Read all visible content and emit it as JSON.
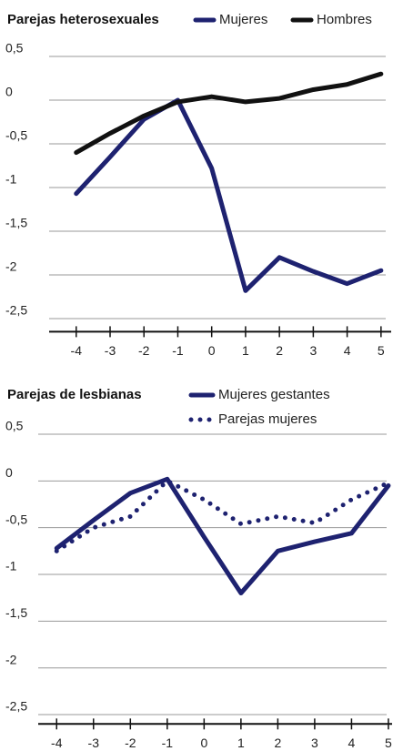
{
  "chart_data": [
    {
      "type": "line",
      "title": "Parejas heterosexuales",
      "x": [
        -4,
        -3,
        -2,
        -1,
        0,
        1,
        2,
        3,
        4,
        5
      ],
      "series": [
        {
          "name": "Mujeres",
          "color": "#1e2270",
          "style": "solid",
          "values": [
            -1.07,
            -0.65,
            -0.22,
            0.0,
            -0.78,
            -2.18,
            -1.8,
            -1.96,
            -2.1,
            -1.95
          ]
        },
        {
          "name": "Hombres",
          "color": "#111111",
          "style": "solid",
          "values": [
            -0.6,
            -0.38,
            -0.18,
            -0.02,
            0.04,
            -0.02,
            0.02,
            0.12,
            0.18,
            0.3
          ]
        }
      ],
      "xlim": [
        -4.8,
        5.3
      ],
      "xticks": [
        -4,
        -3,
        -2,
        -1,
        0,
        1,
        2,
        3,
        4,
        5
      ],
      "ylim": [
        -2.65,
        0.65
      ],
      "yticks": [
        {
          "value": 0.5,
          "label": "0,5"
        },
        0,
        {
          "value": -0.5,
          "label": "-0,5"
        },
        -1,
        {
          "value": -1.5,
          "label": "-1,5"
        },
        -2,
        {
          "value": -2.5,
          "label": "-2,5"
        }
      ],
      "grid": true
    },
    {
      "type": "line",
      "title": "Parejas de lesbianas",
      "x": [
        -4,
        -3,
        -2,
        -1,
        0,
        1,
        2,
        3,
        4,
        5
      ],
      "series": [
        {
          "name": "Mujeres gestantes",
          "color": "#1e2270",
          "style": "solid",
          "values": [
            -0.72,
            -0.42,
            -0.13,
            0.02,
            -0.6,
            -1.2,
            -0.75,
            -0.65,
            -0.56,
            -0.05
          ]
        },
        {
          "name": "Parejas mujeres",
          "color": "#1e2270",
          "style": "dotted",
          "values": [
            -0.75,
            -0.5,
            -0.38,
            0.0,
            -0.2,
            -0.46,
            -0.38,
            -0.45,
            -0.2,
            -0.02
          ]
        }
      ],
      "xlim": [
        -4.5,
        5.1
      ],
      "xticks": [
        -4,
        -3,
        -2,
        -1,
        0,
        1,
        2,
        3,
        4,
        5
      ],
      "ylim": [
        -2.6,
        0.65
      ],
      "yticks": [
        {
          "value": 0.5,
          "label": "0,5"
        },
        0,
        {
          "value": -0.5,
          "label": "-0,5"
        },
        -1,
        {
          "value": -1.5,
          "label": "-1,5"
        },
        -2,
        {
          "value": -2.5,
          "label": "-2,5"
        }
      ],
      "grid": true
    }
  ]
}
